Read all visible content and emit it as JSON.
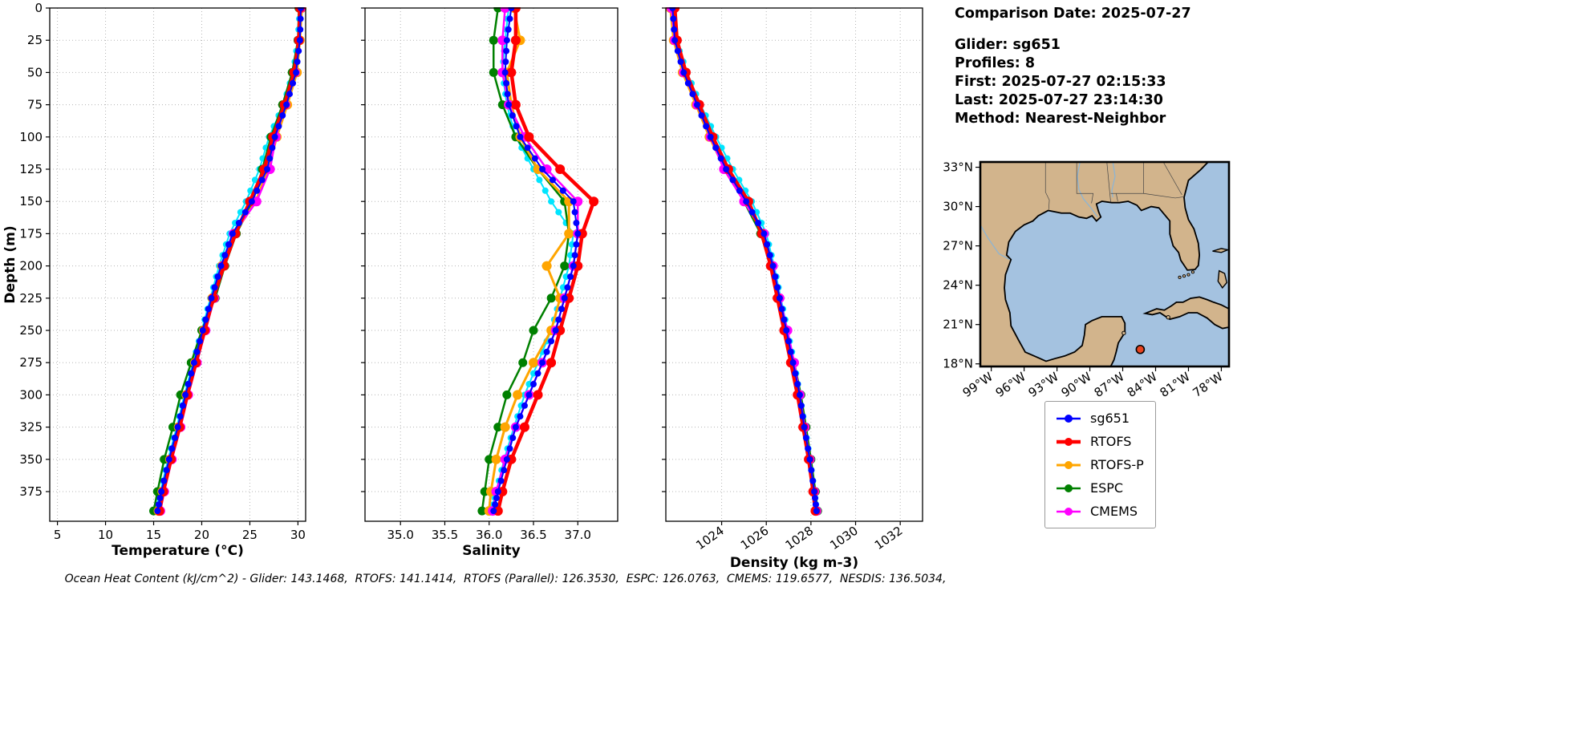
{
  "metadata": {
    "comparison_date": "Comparison Date: 2025-07-27",
    "glider": "Glider: sg651",
    "profiles": "Profiles: 8",
    "first": "First: 2025-07-27 02:15:33",
    "last": "Last: 2025-07-27 23:14:30",
    "method": "Method: Nearest-Neighbor"
  },
  "footer": {
    "ocean_heat_content": "Ocean Heat Content (kJ/cm^2) - Glider: 143.1468,  RTOFS: 141.1414,  RTOFS (Parallel): 126.3530,  ESPC: 126.0763,  CMEMS: 119.6577,  NESDIS: 136.5034,"
  },
  "legend": {
    "items": [
      {
        "label": "sg651",
        "color": "#0000ff",
        "lw": 2.5
      },
      {
        "label": "RTOFS",
        "color": "#ff0000",
        "lw": 4.5
      },
      {
        "label": "RTOFS-P",
        "color": "#ffa500",
        "lw": 3
      },
      {
        "label": "ESPC",
        "color": "#008000",
        "lw": 2.5
      },
      {
        "label": "CMEMS",
        "color": "#ff00ff",
        "lw": 2.5
      }
    ]
  },
  "map": {
    "lat_ticks": [
      "33°N",
      "30°N",
      "27°N",
      "24°N",
      "21°N",
      "18°N"
    ],
    "lat_values": [
      33,
      30,
      27,
      24,
      21,
      18
    ],
    "lon_ticks": [
      "99°W",
      "96°W",
      "93°W",
      "90°W",
      "87°W",
      "84°W",
      "81°W",
      "78°W"
    ],
    "lon_values": [
      -99,
      -96,
      -93,
      -90,
      -87,
      -84,
      -81,
      -78
    ],
    "extent": {
      "lon": [
        -100,
        -77.3
      ],
      "lat": [
        17.8,
        33.4
      ]
    },
    "glider_position": {
      "lon": -85.4,
      "lat": 19.1
    },
    "colors": {
      "land": "#d2b48c",
      "ocean": "#a4c2e0",
      "coast": "#000000",
      "river": "#88b4d8",
      "border": "#444444",
      "marker": "#e8431f"
    }
  },
  "chart_data": [
    {
      "id": "temperature",
      "type": "line",
      "xlabel": "Temperature (°C)",
      "ylabel": "Depth (m)",
      "xlim": [
        4.2,
        30.8
      ],
      "ylim": [
        0,
        398
      ],
      "xticks": [
        5,
        10,
        15,
        20,
        25,
        30
      ],
      "xtick_labels": [
        "5",
        "10",
        "15",
        "20",
        "25",
        "30"
      ],
      "yticks": [
        0,
        25,
        50,
        75,
        100,
        125,
        150,
        175,
        200,
        225,
        250,
        275,
        300,
        325,
        350,
        375
      ],
      "depths": [
        0,
        25,
        50,
        75,
        100,
        125,
        150,
        175,
        200,
        225,
        250,
        275,
        300,
        325,
        350,
        375,
        390
      ],
      "series": [
        {
          "name": "sg651",
          "color": "#0000ff",
          "lw": 2,
          "ms": 4,
          "z": 6,
          "dense": true,
          "values": [
            30.3,
            30.2,
            29.8,
            28.8,
            27.6,
            26.8,
            25.2,
            23.2,
            22.0,
            21.0,
            20.1,
            19.2,
            18.3,
            17.5,
            16.6,
            15.8,
            15.4
          ]
        },
        {
          "name": "RTOFS",
          "color": "#ff0000",
          "lw": 4.5,
          "ms": 6,
          "z": 5,
          "dense": false,
          "values": [
            30.2,
            30.1,
            29.6,
            28.6,
            27.4,
            26.5,
            25.0,
            23.5,
            22.3,
            21.2,
            20.3,
            19.4,
            18.5,
            17.7,
            16.8,
            16.0,
            15.6
          ]
        },
        {
          "name": "RTOFS-P",
          "color": "#ffa500",
          "lw": 3,
          "ms": 6,
          "z": 3,
          "dense": false,
          "values": [
            30.4,
            30.2,
            29.9,
            28.9,
            27.8,
            26.9,
            25.6,
            23.4,
            22.1,
            21.1,
            20.2,
            19.3,
            18.4,
            17.6,
            16.7,
            15.9,
            15.5
          ]
        },
        {
          "name": "ESPC",
          "color": "#008000",
          "lw": 2.5,
          "ms": 5.5,
          "z": 2,
          "dense": false,
          "values": [
            30.1,
            30.0,
            29.4,
            28.4,
            27.2,
            26.3,
            25.3,
            23.6,
            22.4,
            21.4,
            20.0,
            18.9,
            17.8,
            17.0,
            16.1,
            15.4,
            15.0
          ]
        },
        {
          "name": "CMEMS",
          "color": "#ff00ff",
          "lw": 2.5,
          "ms": 6,
          "z": 4,
          "dense": false,
          "values": [
            30.3,
            30.1,
            29.7,
            28.7,
            27.7,
            27.1,
            25.7,
            23.3,
            22.2,
            21.3,
            20.4,
            19.5,
            18.6,
            17.8,
            16.9,
            16.1,
            15.7
          ]
        },
        {
          "name": "NESDIS",
          "color": "#00e5ff",
          "lw": 2,
          "ms": 4,
          "z": 1,
          "dense": true,
          "values": [
            30.2,
            30.0,
            29.5,
            28.5,
            27.0,
            26.0,
            24.6,
            22.9,
            21.8,
            20.9,
            20.0,
            19.1,
            18.2,
            17.4,
            16.5,
            15.7,
            15.3
          ]
        }
      ]
    },
    {
      "id": "salinity",
      "type": "line",
      "xlabel": "Salinity",
      "ylabel": null,
      "xlim": [
        34.6,
        37.45
      ],
      "ylim": [
        0,
        398
      ],
      "xticks": [
        35.0,
        35.5,
        36.0,
        36.5,
        37.0
      ],
      "xtick_labels": [
        "35.0",
        "35.5",
        "36.0",
        "36.5",
        "37.0"
      ],
      "yticks": [
        0,
        25,
        50,
        75,
        100,
        125,
        150,
        175,
        200,
        225,
        250,
        275,
        300,
        325,
        350,
        375
      ],
      "depths": [
        0,
        25,
        50,
        75,
        100,
        125,
        150,
        175,
        200,
        225,
        250,
        275,
        300,
        325,
        350,
        375,
        390
      ],
      "series": [
        {
          "name": "sg651",
          "color": "#0000ff",
          "lw": 2,
          "ms": 4,
          "z": 6,
          "dense": true,
          "values": [
            36.25,
            36.2,
            36.18,
            36.22,
            36.35,
            36.6,
            36.95,
            37.0,
            36.95,
            36.85,
            36.75,
            36.6,
            36.45,
            36.3,
            36.2,
            36.1,
            36.05
          ]
        },
        {
          "name": "RTOFS",
          "color": "#ff0000",
          "lw": 4.5,
          "ms": 6,
          "z": 5,
          "dense": false,
          "values": [
            36.3,
            36.3,
            36.25,
            36.3,
            36.45,
            36.8,
            37.18,
            37.05,
            37.0,
            36.9,
            36.8,
            36.7,
            36.55,
            36.4,
            36.25,
            36.15,
            36.1
          ]
        },
        {
          "name": "RTOFS-P",
          "color": "#ffa500",
          "lw": 3,
          "ms": 6,
          "z": 3,
          "dense": false,
          "values": [
            36.28,
            36.35,
            36.2,
            36.25,
            36.35,
            36.55,
            36.9,
            36.9,
            36.65,
            36.8,
            36.7,
            36.5,
            36.32,
            36.18,
            36.08,
            36.02,
            36.0
          ]
        },
        {
          "name": "ESPC",
          "color": "#008000",
          "lw": 2.5,
          "ms": 5.5,
          "z": 2,
          "dense": false,
          "values": [
            36.1,
            36.05,
            36.05,
            36.15,
            36.3,
            36.55,
            36.85,
            36.9,
            36.85,
            36.7,
            36.5,
            36.38,
            36.2,
            36.1,
            36.0,
            35.95,
            35.92
          ]
        },
        {
          "name": "CMEMS",
          "color": "#ff00ff",
          "lw": 2.5,
          "ms": 6,
          "z": 4,
          "dense": false,
          "values": [
            36.18,
            36.15,
            36.15,
            36.22,
            36.4,
            36.65,
            37.0,
            37.0,
            36.95,
            36.85,
            36.75,
            36.6,
            36.45,
            36.3,
            36.18,
            36.08,
            36.04
          ]
        },
        {
          "name": "NESDIS",
          "color": "#00e5ff",
          "lw": 2,
          "ms": 4,
          "z": 1,
          "dense": true,
          "values": [
            36.22,
            36.18,
            36.15,
            36.2,
            36.3,
            36.5,
            36.7,
            36.95,
            36.9,
            36.8,
            36.7,
            36.55,
            36.4,
            36.28,
            36.17,
            36.08,
            36.03
          ]
        }
      ]
    },
    {
      "id": "density",
      "type": "line",
      "xlabel": "Density (kg m-3)",
      "ylabel": null,
      "xlim": [
        1021.5,
        1033.0
      ],
      "ylim": [
        0,
        398
      ],
      "xticks": [
        1024,
        1026,
        1028,
        1030,
        1032
      ],
      "xtick_labels": [
        "1024",
        "1026",
        "1028",
        "1030",
        "1032"
      ],
      "yticks": [
        0,
        25,
        50,
        75,
        100,
        125,
        150,
        175,
        200,
        225,
        250,
        275,
        300,
        325,
        350,
        375
      ],
      "depths": [
        0,
        25,
        50,
        75,
        100,
        125,
        150,
        175,
        200,
        225,
        250,
        275,
        300,
        325,
        350,
        375,
        390
      ],
      "series": [
        {
          "name": "sg651",
          "color": "#0000ff",
          "lw": 2,
          "ms": 4,
          "z": 6,
          "dense": true,
          "values": [
            1021.8,
            1021.9,
            1022.3,
            1022.9,
            1023.5,
            1024.2,
            1025.1,
            1025.9,
            1026.3,
            1026.6,
            1026.9,
            1027.2,
            1027.5,
            1027.7,
            1027.95,
            1028.15,
            1028.25
          ]
        },
        {
          "name": "RTOFS",
          "color": "#ff0000",
          "lw": 4.5,
          "ms": 6,
          "z": 5,
          "dense": false,
          "values": [
            1021.9,
            1022.0,
            1022.4,
            1023.0,
            1023.6,
            1024.3,
            1025.2,
            1025.8,
            1026.2,
            1026.5,
            1026.8,
            1027.1,
            1027.4,
            1027.65,
            1027.9,
            1028.1,
            1028.2
          ]
        },
        {
          "name": "RTOFS-P",
          "color": "#ffa500",
          "lw": 3,
          "ms": 6,
          "z": 3,
          "dense": false,
          "values": [
            1021.7,
            1021.85,
            1022.25,
            1022.85,
            1023.45,
            1024.15,
            1025.05,
            1025.85,
            1026.25,
            1026.55,
            1026.85,
            1027.15,
            1027.45,
            1027.7,
            1027.92,
            1028.12,
            1028.22
          ]
        },
        {
          "name": "ESPC",
          "color": "#008000",
          "lw": 2.5,
          "ms": 5.5,
          "z": 2,
          "dense": false,
          "values": [
            1021.85,
            1021.95,
            1022.35,
            1022.95,
            1023.55,
            1024.25,
            1025.0,
            1025.75,
            1026.2,
            1026.55,
            1026.9,
            1027.25,
            1027.55,
            1027.78,
            1028.0,
            1028.2,
            1028.3
          ]
        },
        {
          "name": "CMEMS",
          "color": "#ff00ff",
          "lw": 2.5,
          "ms": 6,
          "z": 4,
          "dense": false,
          "values": [
            1021.75,
            1021.9,
            1022.3,
            1022.9,
            1023.5,
            1024.1,
            1025.0,
            1025.9,
            1026.3,
            1026.6,
            1026.95,
            1027.25,
            1027.5,
            1027.72,
            1027.95,
            1028.15,
            1028.25
          ]
        },
        {
          "name": "NESDIS",
          "color": "#00e5ff",
          "lw": 2,
          "ms": 4,
          "z": 1,
          "dense": true,
          "values": [
            1021.8,
            1021.95,
            1022.45,
            1023.05,
            1023.75,
            1024.5,
            1025.35,
            1026.0,
            1026.35,
            1026.65,
            1026.95,
            1027.25,
            1027.5,
            1027.73,
            1027.96,
            1028.16,
            1028.26
          ]
        }
      ]
    }
  ]
}
